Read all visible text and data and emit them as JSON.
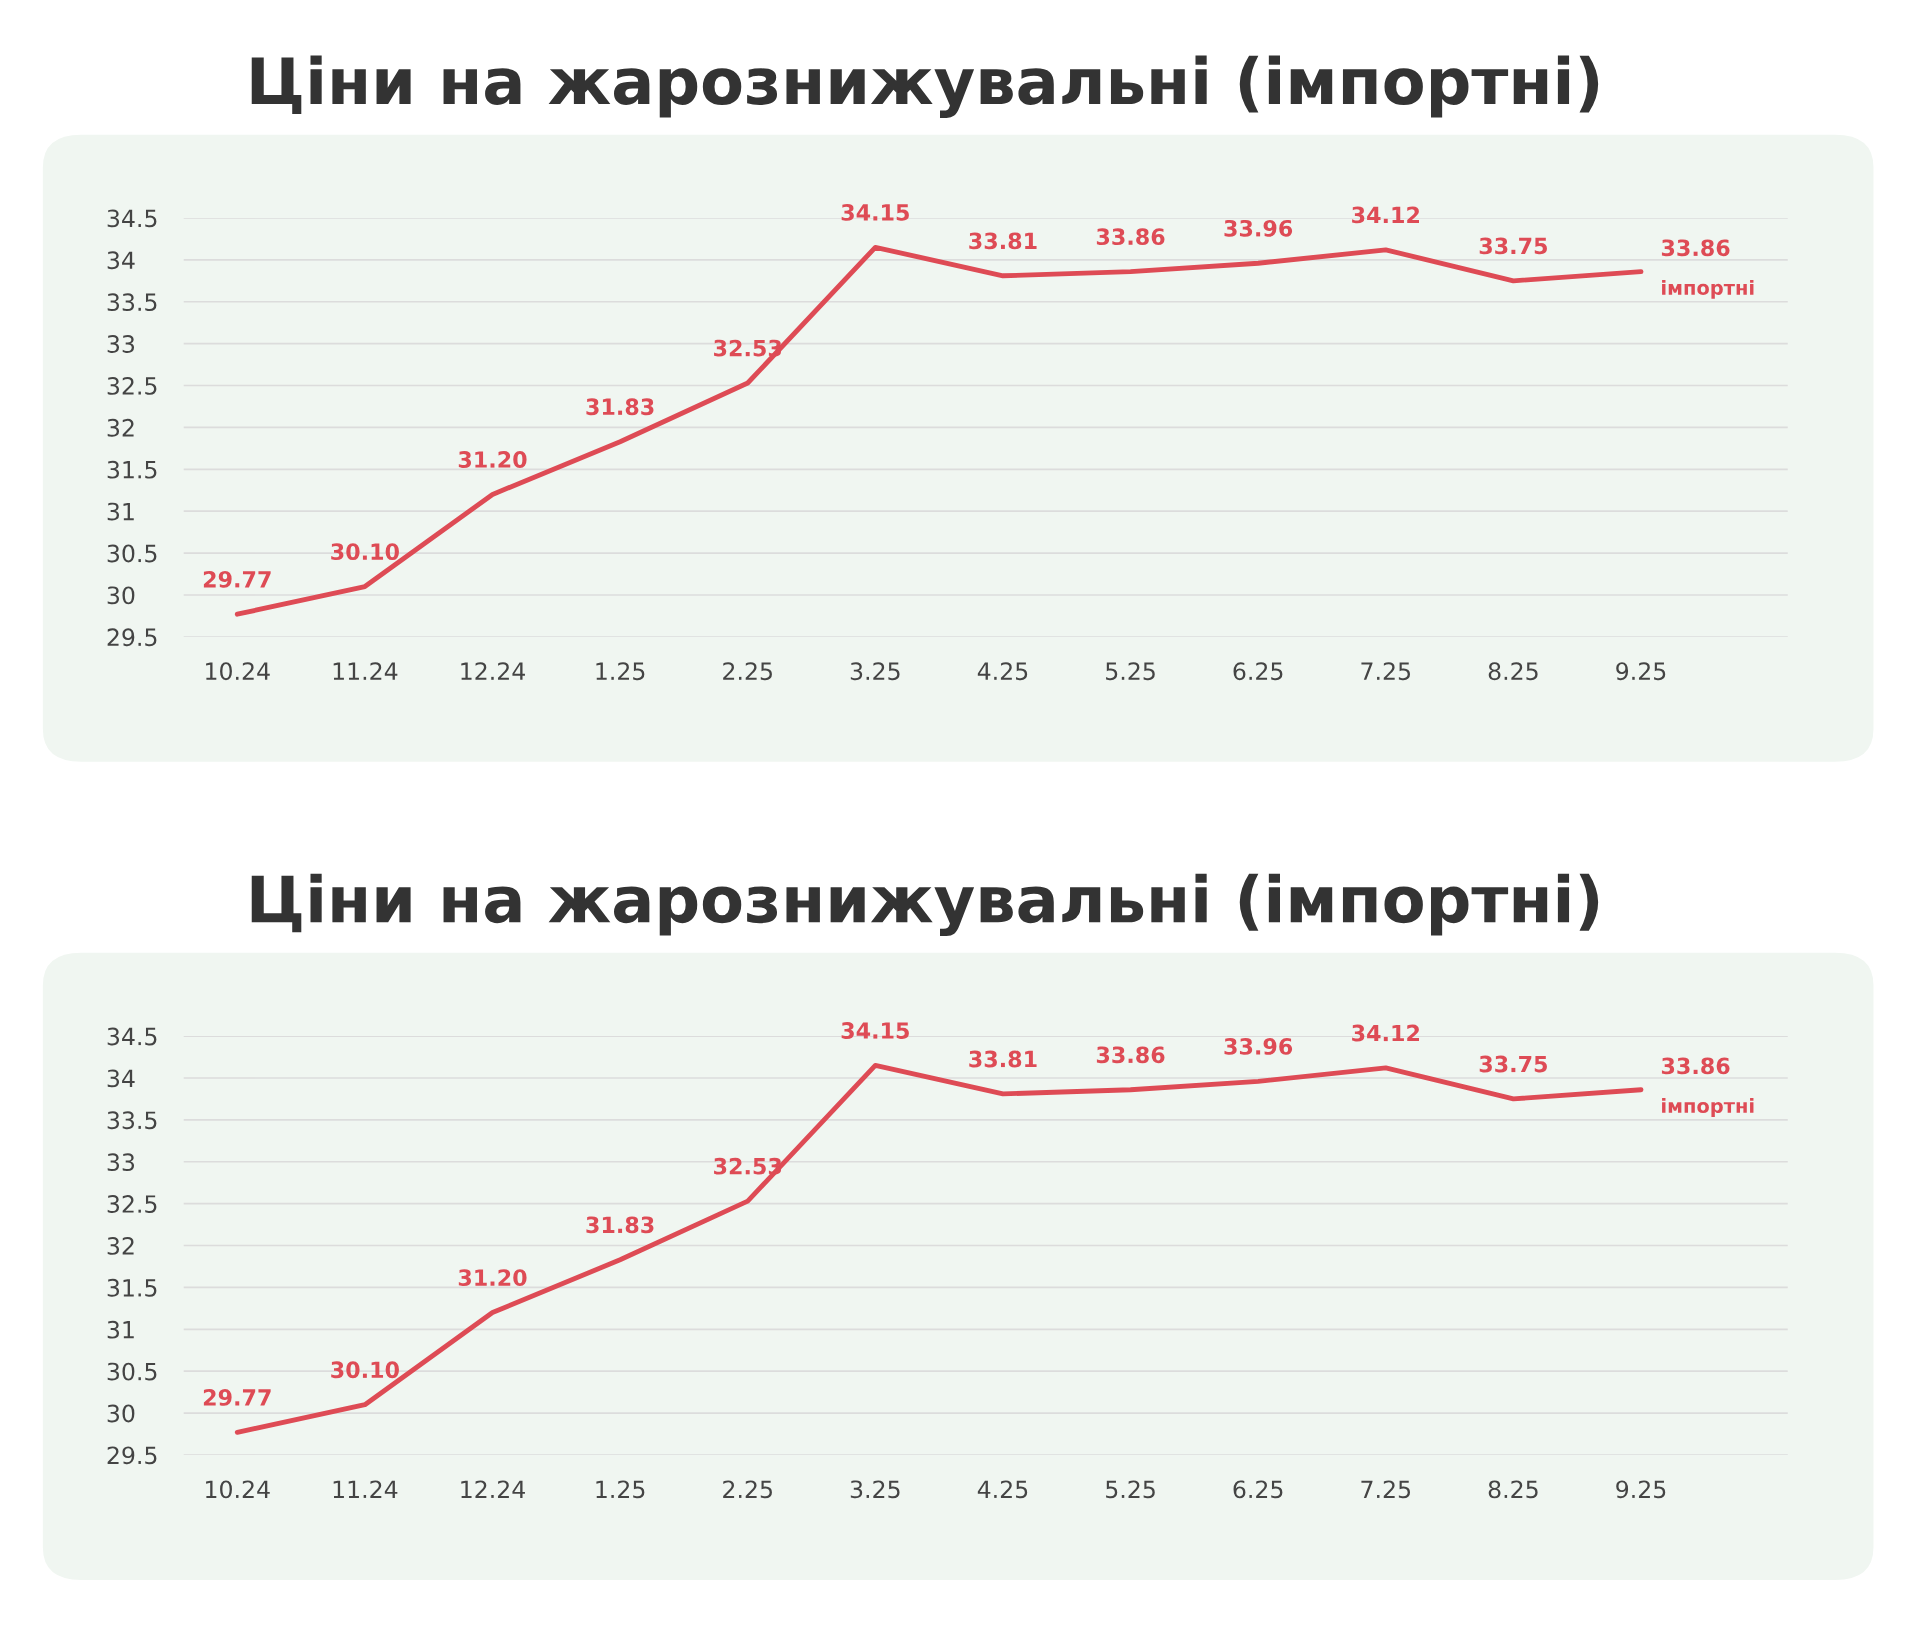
{
  "chart_data": [
    {
      "type": "line",
      "title": "Ціни на жарознижувальні (імпортні)",
      "categories": [
        "10.24",
        "11.24",
        "12.24",
        "1.25",
        "2.25",
        "3.25",
        "4.25",
        "5.25",
        "6.25",
        "7.25",
        "8.25",
        "9.25"
      ],
      "series": [
        {
          "name": "імпортні",
          "color": "#de4b55",
          "values": [
            29.77,
            30.1,
            31.2,
            31.83,
            32.53,
            34.15,
            33.81,
            33.86,
            33.96,
            34.12,
            33.75,
            33.86
          ],
          "value_labels": [
            "29.77",
            "30.10",
            "31.20",
            "31.83",
            "32.53",
            "34.15",
            "33.81",
            "33.86",
            "33.96",
            "34.12",
            "33.75",
            "33.86"
          ]
        }
      ],
      "ylim": [
        29.5,
        34.5
      ],
      "yticks": [
        29.5,
        30,
        30.5,
        31,
        31.5,
        32,
        32.5,
        33,
        33.5,
        34,
        34.5
      ],
      "grid": "y",
      "marker": "none"
    },
    {
      "type": "line",
      "title": "Ціни на жарознижувальні (імпортні)",
      "categories": [
        "10.24",
        "11.24",
        "12.24",
        "1.25",
        "2.25",
        "3.25",
        "4.25",
        "5.25",
        "6.25",
        "7.25",
        "8.25",
        "9.25"
      ],
      "series": [
        {
          "name": "імпортні",
          "color": "#de4b55",
          "values": [
            29.77,
            30.1,
            31.2,
            31.83,
            32.53,
            34.15,
            33.81,
            33.86,
            33.96,
            34.12,
            33.75,
            33.86
          ],
          "value_labels": [
            "29.77",
            "30.10",
            "31.20",
            "31.83",
            "32.53",
            "34.15",
            "33.81",
            "33.86",
            "33.96",
            "34.12",
            "33.75",
            "33.86"
          ]
        }
      ],
      "ylim": [
        29.5,
        34.5
      ],
      "yticks": [
        29.5,
        30,
        30.5,
        31,
        31.5,
        32,
        32.5,
        33,
        33.5,
        34,
        34.5
      ],
      "grid": "y",
      "marker": "none"
    }
  ]
}
